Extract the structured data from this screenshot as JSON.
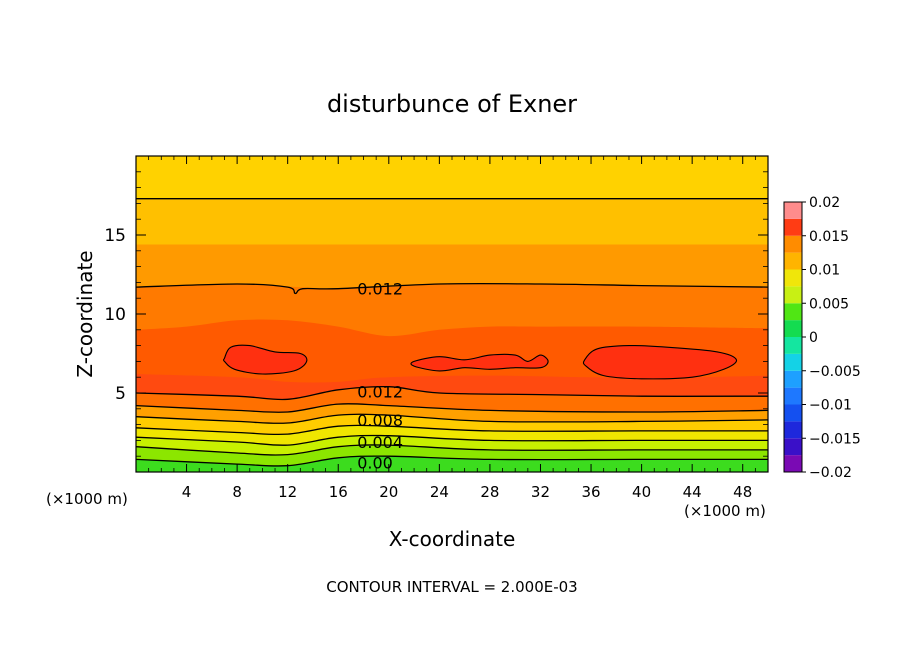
{
  "chart_data": {
    "type": "contour",
    "title": "disturbunce of Exner",
    "xlabel": "X-coordinate",
    "ylabel": "Z-coordinate",
    "x_unit": "(×1000 m)",
    "x_unit_right": "(×1000 m)",
    "xlim": [
      0,
      50
    ],
    "ylim": [
      0,
      20
    ],
    "x_ticks": [
      4,
      8,
      12,
      16,
      20,
      24,
      28,
      32,
      36,
      40,
      44,
      48
    ],
    "y_ticks": [
      5,
      10,
      15
    ],
    "footer": "CONTOUR INTERVAL = 2.000E-03",
    "contour_interval": 0.002,
    "colorbar": {
      "range": [
        -0.02,
        0.02
      ],
      "ticks": [
        "0.02",
        "0.015",
        "0.01",
        "0.005",
        "0",
        "−0.005",
        "−0.01",
        "−0.015",
        "−0.02"
      ],
      "tick_values": [
        0.02,
        0.015,
        0.01,
        0.005,
        0,
        -0.005,
        -0.01,
        -0.015,
        -0.02
      ],
      "bands": [
        {
          "from": -0.02,
          "to": -0.0175,
          "color": "#7a0ab4"
        },
        {
          "from": -0.0175,
          "to": -0.015,
          "color": "#3a10c8"
        },
        {
          "from": -0.015,
          "to": -0.0125,
          "color": "#1e28dc"
        },
        {
          "from": -0.0125,
          "to": -0.01,
          "color": "#1450f0"
        },
        {
          "from": -0.01,
          "to": -0.0075,
          "color": "#1e78ff"
        },
        {
          "from": -0.0075,
          "to": -0.005,
          "color": "#1ea0ff"
        },
        {
          "from": -0.005,
          "to": -0.0025,
          "color": "#14d2e6"
        },
        {
          "from": -0.0025,
          "to": 0,
          "color": "#14e6a0"
        },
        {
          "from": 0,
          "to": 0.0025,
          "color": "#14dc50"
        },
        {
          "from": 0.0025,
          "to": 0.005,
          "color": "#50e614"
        },
        {
          "from": 0.005,
          "to": 0.0075,
          "color": "#c8f014"
        },
        {
          "from": 0.0075,
          "to": 0.01,
          "color": "#f0e60a"
        },
        {
          "from": 0.01,
          "to": 0.0125,
          "color": "#ffb400"
        },
        {
          "from": 0.0125,
          "to": 0.015,
          "color": "#ff8c00"
        },
        {
          "from": 0.015,
          "to": 0.0175,
          "color": "#ff3c14"
        },
        {
          "from": 0.0175,
          "to": 0.02,
          "color": "#ff8c8c"
        }
      ]
    },
    "layers": [
      {
        "color": "#ffd200",
        "top": 20
      },
      {
        "color": "#ffc000",
        "top": [
          [
            0,
            17.3
          ],
          [
            50,
            17.3
          ]
        ]
      },
      {
        "color": "#ff9a00",
        "top": [
          [
            0,
            14.4
          ],
          [
            50,
            14.4
          ]
        ]
      },
      {
        "color": "#ff7a00",
        "top": [
          [
            0,
            11.7
          ],
          [
            8,
            11.9
          ],
          [
            16,
            11.6
          ],
          [
            24,
            11.9
          ],
          [
            32,
            11.9
          ],
          [
            40,
            11.8
          ],
          [
            50,
            11.7
          ]
        ]
      },
      {
        "color": "#ff5a00",
        "top": [
          [
            0,
            9.0
          ],
          [
            4,
            9.2
          ],
          [
            8,
            9.6
          ],
          [
            12,
            9.6
          ],
          [
            16,
            9.2
          ],
          [
            20,
            8.6
          ],
          [
            24,
            9.0
          ],
          [
            28,
            9.2
          ],
          [
            32,
            9.2
          ],
          [
            40,
            9.2
          ],
          [
            50,
            9.1
          ]
        ]
      },
      {
        "color": "#ff4a10",
        "top": [
          [
            0,
            6.2
          ],
          [
            8,
            6.0
          ],
          [
            12,
            5.7
          ],
          [
            16,
            5.7
          ],
          [
            20,
            6.0
          ],
          [
            28,
            6.1
          ],
          [
            36,
            6.0
          ],
          [
            44,
            6.0
          ],
          [
            50,
            6.1
          ]
        ]
      },
      {
        "color": "#ff7000",
        "top": [
          [
            0,
            5.0
          ],
          [
            8,
            4.8
          ],
          [
            12,
            4.6
          ],
          [
            16,
            5.2
          ],
          [
            20,
            5.4
          ],
          [
            24,
            5.0
          ],
          [
            32,
            4.9
          ],
          [
            40,
            4.8
          ],
          [
            48,
            4.8
          ],
          [
            50,
            4.8
          ]
        ]
      },
      {
        "color": "#ffa000",
        "top": [
          [
            0,
            4.2
          ],
          [
            8,
            3.9
          ],
          [
            12,
            3.8
          ],
          [
            16,
            4.3
          ],
          [
            20,
            4.2
          ],
          [
            28,
            3.9
          ],
          [
            40,
            3.8
          ],
          [
            50,
            3.9
          ]
        ]
      },
      {
        "color": "#ffcc00",
        "top": [
          [
            0,
            3.5
          ],
          [
            8,
            3.2
          ],
          [
            12,
            3.1
          ],
          [
            16,
            3.6
          ],
          [
            20,
            3.6
          ],
          [
            28,
            3.2
          ],
          [
            40,
            3.2
          ],
          [
            50,
            3.3
          ]
        ]
      },
      {
        "color": "#f0e600",
        "top": [
          [
            0,
            2.8
          ],
          [
            8,
            2.5
          ],
          [
            12,
            2.4
          ],
          [
            16,
            2.9
          ],
          [
            20,
            2.9
          ],
          [
            28,
            2.6
          ],
          [
            40,
            2.6
          ],
          [
            50,
            2.6
          ]
        ]
      },
      {
        "color": "#c8f000",
        "top": [
          [
            0,
            2.2
          ],
          [
            8,
            1.9
          ],
          [
            12,
            1.7
          ],
          [
            16,
            2.2
          ],
          [
            20,
            2.3
          ],
          [
            28,
            2.0
          ],
          [
            40,
            2.0
          ],
          [
            50,
            2.0
          ]
        ]
      },
      {
        "color": "#8ce600",
        "top": [
          [
            0,
            1.6
          ],
          [
            8,
            1.2
          ],
          [
            12,
            1.1
          ],
          [
            16,
            1.6
          ],
          [
            20,
            1.7
          ],
          [
            28,
            1.4
          ],
          [
            40,
            1.4
          ],
          [
            50,
            1.4
          ]
        ]
      },
      {
        "color": "#3cdc1e",
        "top": [
          [
            0,
            0.8
          ],
          [
            8,
            0.5
          ],
          [
            12,
            0.4
          ],
          [
            16,
            0.9
          ],
          [
            20,
            1.0
          ],
          [
            28,
            0.8
          ],
          [
            40,
            0.8
          ],
          [
            50,
            0.8
          ]
        ]
      }
    ],
    "contours": [
      {
        "points": [
          [
            0,
            17.3
          ],
          [
            50,
            17.3
          ]
        ]
      },
      {
        "points": [
          [
            0,
            11.7
          ],
          [
            8,
            11.9
          ],
          [
            12,
            11.7
          ],
          [
            12.6,
            11.3
          ],
          [
            13.2,
            11.6
          ],
          [
            16,
            11.6
          ],
          [
            24,
            11.9
          ],
          [
            32,
            11.9
          ],
          [
            40,
            11.8
          ],
          [
            50,
            11.7
          ]
        ],
        "label": "0.012",
        "label_at": [
          17.5,
          11.6
        ]
      },
      {
        "points": [
          [
            0,
            5.0
          ],
          [
            8,
            4.8
          ],
          [
            12,
            4.6
          ],
          [
            16,
            5.2
          ],
          [
            20,
            5.4
          ],
          [
            24,
            5.0
          ],
          [
            32,
            4.9
          ],
          [
            40,
            4.8
          ],
          [
            48,
            4.8
          ],
          [
            50,
            4.8
          ]
        ],
        "label": "0.012",
        "label_at": [
          17.5,
          5.1
        ]
      },
      {
        "points": [
          [
            0,
            4.2
          ],
          [
            8,
            3.9
          ],
          [
            12,
            3.8
          ],
          [
            16,
            4.3
          ],
          [
            20,
            4.2
          ],
          [
            28,
            3.9
          ],
          [
            40,
            3.8
          ],
          [
            50,
            3.9
          ]
        ]
      },
      {
        "points": [
          [
            0,
            3.5
          ],
          [
            8,
            3.2
          ],
          [
            12,
            3.1
          ],
          [
            16,
            3.6
          ],
          [
            20,
            3.6
          ],
          [
            28,
            3.2
          ],
          [
            40,
            3.2
          ],
          [
            50,
            3.3
          ]
        ],
        "label": "0.008",
        "label_at": [
          17.5,
          3.3
        ]
      },
      {
        "points": [
          [
            0,
            2.8
          ],
          [
            8,
            2.5
          ],
          [
            12,
            2.4
          ],
          [
            16,
            2.9
          ],
          [
            20,
            2.9
          ],
          [
            28,
            2.6
          ],
          [
            40,
            2.6
          ],
          [
            50,
            2.6
          ]
        ]
      },
      {
        "points": [
          [
            0,
            2.2
          ],
          [
            8,
            1.9
          ],
          [
            12,
            1.7
          ],
          [
            16,
            2.2
          ],
          [
            20,
            2.3
          ],
          [
            28,
            2.0
          ],
          [
            40,
            2.0
          ],
          [
            50,
            2.0
          ]
        ],
        "label": "0.004",
        "label_at": [
          17.5,
          1.9
        ]
      },
      {
        "points": [
          [
            0,
            1.6
          ],
          [
            8,
            1.2
          ],
          [
            12,
            1.1
          ],
          [
            16,
            1.6
          ],
          [
            20,
            1.7
          ],
          [
            28,
            1.4
          ],
          [
            40,
            1.4
          ],
          [
            50,
            1.4
          ]
        ]
      },
      {
        "points": [
          [
            0,
            0.8
          ],
          [
            8,
            0.5
          ],
          [
            12,
            0.4
          ],
          [
            16,
            0.9
          ],
          [
            20,
            1.0
          ],
          [
            28,
            0.8
          ],
          [
            40,
            0.8
          ],
          [
            50,
            0.8
          ]
        ],
        "label": "0.00",
        "label_at": [
          17.5,
          0.6
        ]
      }
    ],
    "closed_contours": [
      {
        "color": "#ff3010",
        "points": [
          [
            7.0,
            7.2
          ],
          [
            7.5,
            7.9
          ],
          [
            9.0,
            8.0
          ],
          [
            11.0,
            7.6
          ],
          [
            13.0,
            7.5
          ],
          [
            13.5,
            7.0
          ],
          [
            12.5,
            6.4
          ],
          [
            10.0,
            6.2
          ],
          [
            7.8,
            6.5
          ],
          [
            7.0,
            7.0
          ]
        ]
      },
      {
        "color": "#ff3010",
        "points": [
          [
            22.0,
            7.0
          ],
          [
            24.0,
            7.3
          ],
          [
            26.0,
            7.1
          ],
          [
            28.0,
            7.4
          ],
          [
            30.0,
            7.4
          ],
          [
            31.0,
            7.0
          ],
          [
            32.0,
            7.4
          ],
          [
            32.6,
            7.0
          ],
          [
            32.0,
            6.6
          ],
          [
            30.0,
            6.6
          ],
          [
            28.0,
            6.5
          ],
          [
            26.0,
            6.6
          ],
          [
            24.0,
            6.4
          ],
          [
            22.0,
            6.7
          ]
        ]
      },
      {
        "color": "#ff3010",
        "points": [
          [
            35.5,
            7.1
          ],
          [
            36.5,
            7.8
          ],
          [
            39.0,
            8.0
          ],
          [
            42.0,
            7.9
          ],
          [
            46.0,
            7.6
          ],
          [
            47.5,
            7.1
          ],
          [
            46.5,
            6.5
          ],
          [
            44.0,
            6.0
          ],
          [
            40.0,
            5.9
          ],
          [
            37.0,
            6.1
          ],
          [
            35.6,
            6.7
          ]
        ]
      }
    ]
  }
}
